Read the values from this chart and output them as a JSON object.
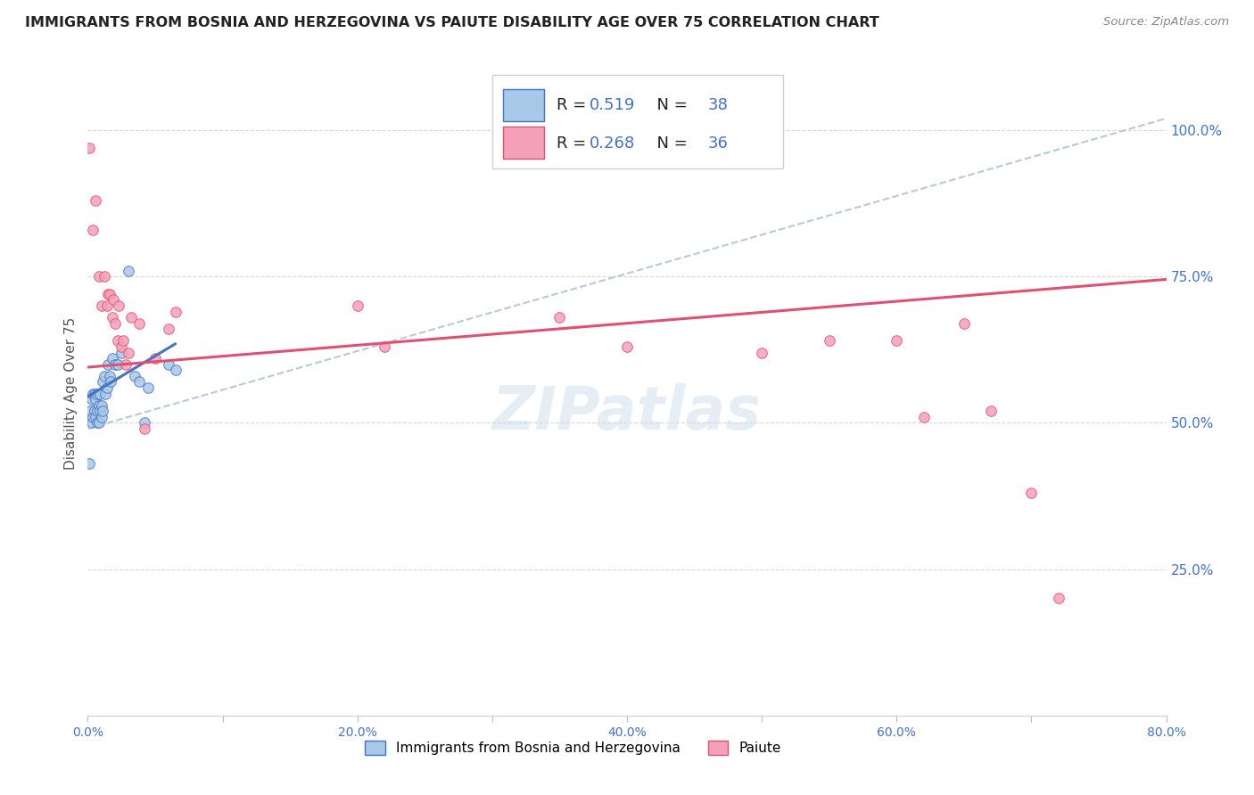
{
  "title": "IMMIGRANTS FROM BOSNIA AND HERZEGOVINA VS PAIUTE DISABILITY AGE OVER 75 CORRELATION CHART",
  "source": "Source: ZipAtlas.com",
  "ylabel": "Disability Age Over 75",
  "xlim": [
    0.0,
    0.8
  ],
  "ylim": [
    0.0,
    1.1
  ],
  "xtick_labels": [
    "0.0%",
    "",
    "20.0%",
    "",
    "40.0%",
    "",
    "60.0%",
    "",
    "80.0%"
  ],
  "xtick_vals": [
    0.0,
    0.1,
    0.2,
    0.3,
    0.4,
    0.5,
    0.6,
    0.7,
    0.8
  ],
  "ytick_labels_right": [
    "25.0%",
    "50.0%",
    "75.0%",
    "100.0%"
  ],
  "ytick_vals_right": [
    0.25,
    0.5,
    0.75,
    1.0
  ],
  "legend_label1": "Immigrants from Bosnia and Herzegovina",
  "legend_label2": "Paiute",
  "R1": "0.519",
  "N1": "38",
  "R2": "0.268",
  "N2": "36",
  "blue_scatter_x": [
    0.001,
    0.002,
    0.003,
    0.003,
    0.004,
    0.004,
    0.005,
    0.005,
    0.006,
    0.006,
    0.007,
    0.007,
    0.007,
    0.008,
    0.008,
    0.009,
    0.009,
    0.01,
    0.01,
    0.011,
    0.011,
    0.012,
    0.013,
    0.014,
    0.015,
    0.016,
    0.017,
    0.018,
    0.02,
    0.022,
    0.025,
    0.03,
    0.035,
    0.038,
    0.042,
    0.045,
    0.06,
    0.065
  ],
  "blue_scatter_y": [
    0.43,
    0.52,
    0.5,
    0.54,
    0.51,
    0.55,
    0.52,
    0.55,
    0.51,
    0.54,
    0.5,
    0.52,
    0.55,
    0.5,
    0.53,
    0.52,
    0.55,
    0.51,
    0.53,
    0.52,
    0.57,
    0.58,
    0.55,
    0.56,
    0.6,
    0.58,
    0.57,
    0.61,
    0.6,
    0.6,
    0.62,
    0.76,
    0.58,
    0.57,
    0.5,
    0.56,
    0.6,
    0.59
  ],
  "pink_scatter_x": [
    0.001,
    0.004,
    0.006,
    0.008,
    0.01,
    0.012,
    0.014,
    0.015,
    0.016,
    0.018,
    0.019,
    0.02,
    0.022,
    0.023,
    0.025,
    0.026,
    0.028,
    0.03,
    0.032,
    0.038,
    0.042,
    0.05,
    0.06,
    0.065,
    0.2,
    0.22,
    0.35,
    0.4,
    0.5,
    0.55,
    0.6,
    0.62,
    0.65,
    0.67,
    0.7,
    0.72
  ],
  "pink_scatter_y": [
    0.97,
    0.83,
    0.88,
    0.75,
    0.7,
    0.75,
    0.7,
    0.72,
    0.72,
    0.68,
    0.71,
    0.67,
    0.64,
    0.7,
    0.63,
    0.64,
    0.6,
    0.62,
    0.68,
    0.67,
    0.49,
    0.61,
    0.66,
    0.69,
    0.7,
    0.63,
    0.68,
    0.63,
    0.62,
    0.64,
    0.64,
    0.51,
    0.67,
    0.52,
    0.38,
    0.2
  ],
  "blue_line_x": [
    0.0,
    0.065
  ],
  "blue_line_y": [
    0.545,
    0.635
  ],
  "pink_line_x": [
    0.0,
    0.8
  ],
  "pink_line_y": [
    0.595,
    0.745
  ],
  "dash_line_x": [
    0.0,
    0.8
  ],
  "dash_line_y": [
    0.49,
    1.02
  ],
  "dot_color_blue": "#a8c8e8",
  "dot_color_pink": "#f4a0b8",
  "line_color_blue": "#4472c4",
  "line_color_pink": "#e05070",
  "dash_line_color": "#a0b8d0",
  "bg_color": "#ffffff",
  "grid_color": "#d8d8d8",
  "title_color": "#222222",
  "axis_label_color": "#555555",
  "right_tick_color": "#4472c4",
  "watermark": "ZIPatlas"
}
